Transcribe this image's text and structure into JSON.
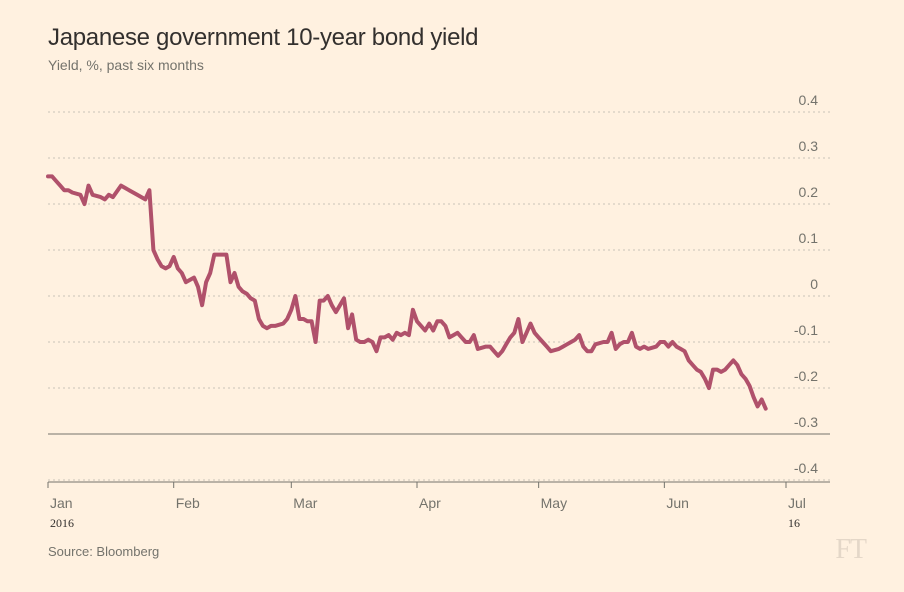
{
  "title": "Japanese government 10-year bond yield",
  "subtitle": "Yield, %, past six months",
  "source": "Source: Bloomberg",
  "logo": "FT",
  "colors": {
    "background": "#fff1e0",
    "line": "#b0516b",
    "grid": "#c9c2b8",
    "zero_line": "#74736c",
    "axis": "#74736c"
  },
  "chart_data": {
    "type": "line",
    "title": "Japanese government 10-year bond yield",
    "subtitle": "Yield, %, past six months",
    "ylabel": "Yield, %",
    "ylim": [
      -0.4,
      0.4
    ],
    "xlim": [
      0,
      182
    ],
    "y_ticks": [
      {
        "value": 0.4,
        "label": "0.4"
      },
      {
        "value": 0.3,
        "label": "0.3"
      },
      {
        "value": 0.2,
        "label": "0.2"
      },
      {
        "value": 0.1,
        "label": "0.1"
      },
      {
        "value": 0,
        "label": "0"
      },
      {
        "value": -0.1,
        "label": "-0.1"
      },
      {
        "value": -0.2,
        "label": "-0.2"
      },
      {
        "value": -0.3,
        "label": "-0.3"
      },
      {
        "value": -0.4,
        "label": "-0.4"
      }
    ],
    "x_ticks": [
      {
        "day": 0,
        "label": "Jan",
        "sublabel": "2016"
      },
      {
        "day": 31,
        "label": "Feb",
        "sublabel": ""
      },
      {
        "day": 60,
        "label": "Mar",
        "sublabel": ""
      },
      {
        "day": 91,
        "label": "Apr",
        "sublabel": ""
      },
      {
        "day": 121,
        "label": "May",
        "sublabel": ""
      },
      {
        "day": 152,
        "label": "Jun",
        "sublabel": ""
      },
      {
        "day": 182,
        "label": "Jul",
        "sublabel": "16"
      }
    ],
    "grid": "horizontal-dotted",
    "legend": "none",
    "series": [
      {
        "values": [
          [
            0,
            0.26
          ],
          [
            1,
            0.26
          ],
          [
            2,
            0.25
          ],
          [
            3,
            0.24
          ],
          [
            4,
            0.23
          ],
          [
            5,
            0.23
          ],
          [
            6,
            0.225
          ],
          [
            8,
            0.22
          ],
          [
            9,
            0.2
          ],
          [
            10,
            0.24
          ],
          [
            11,
            0.22
          ],
          [
            13,
            0.215
          ],
          [
            14,
            0.21
          ],
          [
            15,
            0.22
          ],
          [
            16,
            0.215
          ],
          [
            18,
            0.24
          ],
          [
            20,
            0.23
          ],
          [
            22,
            0.22
          ],
          [
            24,
            0.21
          ],
          [
            25,
            0.23
          ],
          [
            26,
            0.1
          ],
          [
            27,
            0.08
          ],
          [
            28,
            0.065
          ],
          [
            29,
            0.06
          ],
          [
            30,
            0.065
          ],
          [
            31,
            0.085
          ],
          [
            32,
            0.06
          ],
          [
            33,
            0.05
          ],
          [
            34,
            0.03
          ],
          [
            35,
            0.035
          ],
          [
            36,
            0.04
          ],
          [
            37,
            0.02
          ],
          [
            38,
            -0.02
          ],
          [
            39,
            0.03
          ],
          [
            40,
            0.05
          ],
          [
            41,
            0.09
          ],
          [
            42,
            0.09
          ],
          [
            43,
            0.09
          ],
          [
            44,
            0.09
          ],
          [
            45,
            0.03
          ],
          [
            46,
            0.05
          ],
          [
            47,
            0.02
          ],
          [
            48,
            0.01
          ],
          [
            49,
            0.005
          ],
          [
            50,
            -0.005
          ],
          [
            51,
            -0.01
          ],
          [
            52,
            -0.05
          ],
          [
            53,
            -0.065
          ],
          [
            54,
            -0.07
          ],
          [
            55,
            -0.065
          ],
          [
            56,
            -0.065
          ],
          [
            58,
            -0.06
          ],
          [
            59,
            -0.05
          ],
          [
            60,
            -0.03
          ],
          [
            61,
            0.0
          ],
          [
            62,
            -0.05
          ],
          [
            63,
            -0.05
          ],
          [
            64,
            -0.055
          ],
          [
            65,
            -0.055
          ],
          [
            66,
            -0.1
          ],
          [
            67,
            -0.01
          ],
          [
            68,
            -0.01
          ],
          [
            69,
            0.0
          ],
          [
            70,
            -0.02
          ],
          [
            71,
            -0.035
          ],
          [
            72,
            -0.02
          ],
          [
            73,
            -0.005
          ],
          [
            74,
            -0.07
          ],
          [
            75,
            -0.04
          ],
          [
            76,
            -0.095
          ],
          [
            77,
            -0.1
          ],
          [
            78,
            -0.1
          ],
          [
            79,
            -0.095
          ],
          [
            80,
            -0.1
          ],
          [
            81,
            -0.12
          ],
          [
            82,
            -0.09
          ],
          [
            83,
            -0.09
          ],
          [
            84,
            -0.085
          ],
          [
            85,
            -0.095
          ],
          [
            86,
            -0.08
          ],
          [
            87,
            -0.085
          ],
          [
            88,
            -0.08
          ],
          [
            89,
            -0.085
          ],
          [
            90,
            -0.03
          ],
          [
            91,
            -0.055
          ],
          [
            92,
            -0.065
          ],
          [
            93,
            -0.075
          ],
          [
            94,
            -0.06
          ],
          [
            95,
            -0.075
          ],
          [
            96,
            -0.055
          ],
          [
            97,
            -0.055
          ],
          [
            98,
            -0.065
          ],
          [
            99,
            -0.09
          ],
          [
            100,
            -0.085
          ],
          [
            101,
            -0.08
          ],
          [
            102,
            -0.09
          ],
          [
            103,
            -0.1
          ],
          [
            104,
            -0.1
          ],
          [
            105,
            -0.085
          ],
          [
            106,
            -0.115
          ],
          [
            108,
            -0.11
          ],
          [
            109,
            -0.11
          ],
          [
            110,
            -0.12
          ],
          [
            111,
            -0.13
          ],
          [
            112,
            -0.12
          ],
          [
            113,
            -0.105
          ],
          [
            114,
            -0.09
          ],
          [
            115,
            -0.08
          ],
          [
            116,
            -0.05
          ],
          [
            117,
            -0.1
          ],
          [
            118,
            -0.08
          ],
          [
            119,
            -0.06
          ],
          [
            120,
            -0.08
          ],
          [
            121,
            -0.09
          ],
          [
            122,
            -0.1
          ],
          [
            123,
            -0.11
          ],
          [
            124,
            -0.12
          ],
          [
            126,
            -0.115
          ],
          [
            127,
            -0.11
          ],
          [
            128,
            -0.105
          ],
          [
            129,
            -0.1
          ],
          [
            130,
            -0.095
          ],
          [
            131,
            -0.085
          ],
          [
            132,
            -0.11
          ],
          [
            133,
            -0.12
          ],
          [
            134,
            -0.12
          ],
          [
            135,
            -0.105
          ],
          [
            137,
            -0.1
          ],
          [
            138,
            -0.1
          ],
          [
            139,
            -0.08
          ],
          [
            140,
            -0.115
          ],
          [
            141,
            -0.105
          ],
          [
            142,
            -0.1
          ],
          [
            143,
            -0.1
          ],
          [
            144,
            -0.08
          ],
          [
            145,
            -0.11
          ],
          [
            146,
            -0.115
          ],
          [
            147,
            -0.11
          ],
          [
            148,
            -0.115
          ],
          [
            150,
            -0.11
          ],
          [
            151,
            -0.1
          ],
          [
            152,
            -0.1
          ],
          [
            153,
            -0.11
          ],
          [
            154,
            -0.1
          ],
          [
            155,
            -0.11
          ],
          [
            156,
            -0.115
          ],
          [
            157,
            -0.12
          ],
          [
            158,
            -0.14
          ],
          [
            159,
            -0.15
          ],
          [
            160,
            -0.16
          ],
          [
            161,
            -0.165
          ],
          [
            162,
            -0.18
          ],
          [
            163,
            -0.2
          ],
          [
            164,
            -0.16
          ],
          [
            165,
            -0.16
          ],
          [
            166,
            -0.165
          ],
          [
            167,
            -0.16
          ],
          [
            168,
            -0.15
          ],
          [
            169,
            -0.14
          ],
          [
            170,
            -0.15
          ],
          [
            171,
            -0.17
          ],
          [
            172,
            -0.18
          ],
          [
            173,
            -0.195
          ],
          [
            174,
            -0.22
          ],
          [
            175,
            -0.24
          ],
          [
            176,
            -0.225
          ],
          [
            177,
            -0.245
          ]
        ]
      }
    ]
  }
}
